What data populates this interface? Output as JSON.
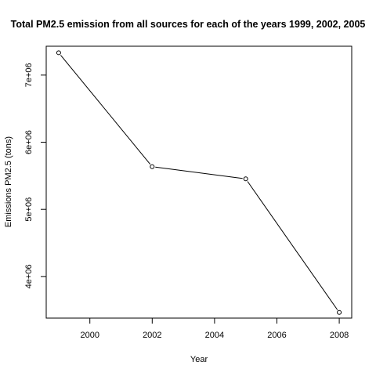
{
  "chart_data": {
    "type": "line",
    "title": "Total PM2.5 emission from all sources for each of the years 1999, 2002, 2005",
    "xlabel": "Year",
    "ylabel": "Emissions PM2.5 (tons)",
    "x": [
      1999,
      2002,
      2005,
      2008
    ],
    "series": [
      {
        "values": [
          7332967,
          5635780,
          5454703,
          3464206
        ]
      }
    ],
    "xlim": [
      1998.6,
      2008.4
    ],
    "ylim": [
      3380000,
      7430000
    ],
    "xticks": [
      2000,
      2002,
      2004,
      2006,
      2008
    ],
    "xtick_labels": [
      "2000",
      "2002",
      "2004",
      "2006",
      "2008"
    ],
    "yticks": [
      4000000,
      5000000,
      6000000,
      7000000
    ],
    "ytick_labels": [
      "4e+06",
      "5e+06",
      "6e+06",
      "7e+06"
    ],
    "marker": "open-circle",
    "line_color": "#000000",
    "grid": false,
    "legend": "none"
  }
}
